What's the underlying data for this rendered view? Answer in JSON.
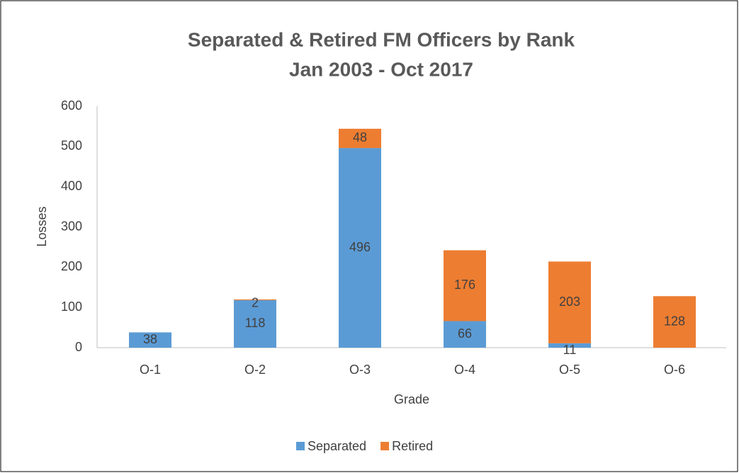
{
  "chart_data": {
    "type": "stacked_bar",
    "title": "Separated & Retired FM Officers by Rank",
    "subtitle": "Jan 2003 - Oct 2017",
    "x_label": "Grade",
    "y_label": "Losses",
    "categories": [
      "O-1",
      "O-2",
      "O-3",
      "O-4",
      "O-5",
      "O-6"
    ],
    "series": [
      {
        "name": "Separated",
        "color": "#5b9bd5",
        "values": [
          38,
          118,
          496,
          66,
          11,
          null
        ]
      },
      {
        "name": "Retired",
        "color": "#ed7d31",
        "values": [
          null,
          2,
          48,
          176,
          203,
          128
        ]
      }
    ],
    "ylim": [
      0,
      600
    ],
    "yticks": [
      0,
      100,
      200,
      300,
      400,
      500,
      600
    ],
    "grid": false,
    "legend": "bottom"
  }
}
